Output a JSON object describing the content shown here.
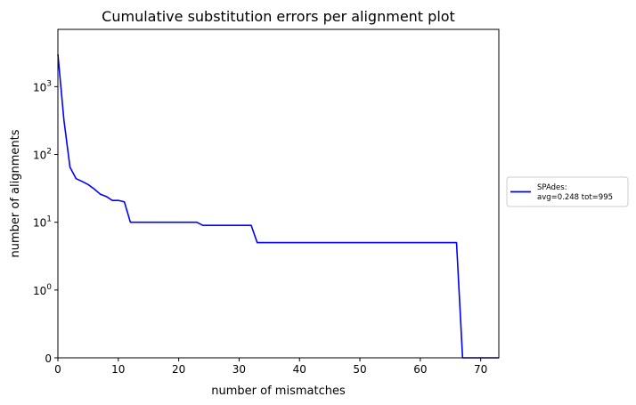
{
  "chart_data": {
    "type": "line",
    "title": "Cumulative substitution errors per alignment plot",
    "xlabel": "number of mismatches",
    "ylabel": "number of alignments",
    "xlim": [
      0,
      73
    ],
    "yscale": "symlog",
    "y_linthresh": 1,
    "ylim": [
      0,
      7000
    ],
    "grid": false,
    "legend_position": "right-outside",
    "x_ticks": [
      0,
      10,
      20,
      30,
      40,
      50,
      60,
      70
    ],
    "x_tick_labels": [
      "0",
      "10",
      "20",
      "30",
      "40",
      "50",
      "60",
      "70"
    ],
    "y_ticks": [
      0,
      1,
      10,
      100,
      1000
    ],
    "y_tick_labels": [
      {
        "base": "0",
        "exp": ""
      },
      {
        "base": "10",
        "exp": "0"
      },
      {
        "base": "10",
        "exp": "1"
      },
      {
        "base": "10",
        "exp": "2"
      },
      {
        "base": "10",
        "exp": "3"
      }
    ],
    "series": [
      {
        "legend_line1": "SPAdes:",
        "legend_line2": "avg=0.248 tot=995",
        "color": "#0000ff",
        "points": [
          [
            0,
            3000
          ],
          [
            1,
            320
          ],
          [
            2,
            65
          ],
          [
            3,
            44
          ],
          [
            4,
            40
          ],
          [
            5,
            36
          ],
          [
            6,
            31
          ],
          [
            7,
            26
          ],
          [
            8,
            24
          ],
          [
            9,
            21
          ],
          [
            10,
            21
          ],
          [
            11,
            20
          ],
          [
            12,
            10
          ],
          [
            13,
            10
          ],
          [
            23,
            10
          ],
          [
            24,
            9
          ],
          [
            32,
            9
          ],
          [
            33,
            5
          ],
          [
            66,
            5
          ],
          [
            67,
            0
          ],
          [
            73,
            0
          ]
        ]
      }
    ]
  }
}
